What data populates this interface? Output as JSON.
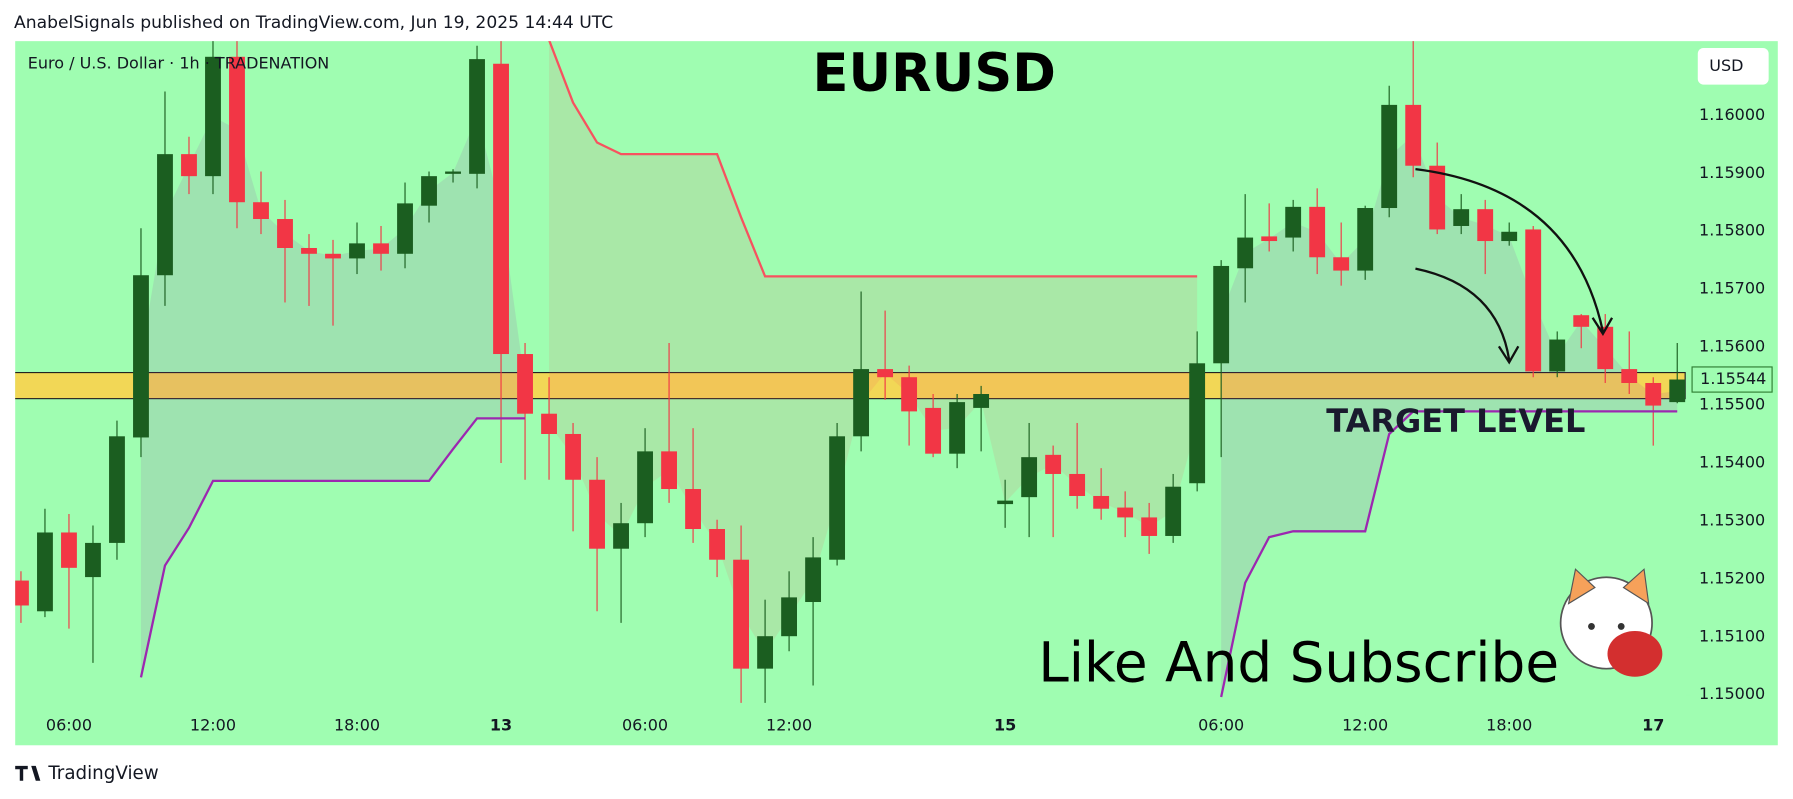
{
  "header": "AnabelSignals published on TradingView.com, Jun 19, 2025 14:44 UTC",
  "footer": "TradingView",
  "chart_data": {
    "type": "candlestick",
    "title": "EURUSD",
    "symbol": "Euro / U.S. Dollar · 1h · TRADENATION",
    "currency": "USD",
    "annotations": [
      "TARGET LEVEL",
      "Like And Subscribe"
    ],
    "up_color": "#1b5e20",
    "down_color": "#f23645",
    "background": "#9ffdb1",
    "x": [
      0,
      1,
      2,
      3,
      4,
      5,
      6,
      7,
      8,
      9,
      10,
      11,
      12,
      13,
      14,
      15,
      16,
      17,
      18,
      19,
      20,
      21,
      22,
      23,
      24,
      25,
      26,
      27,
      28,
      29,
      30,
      31,
      32,
      33,
      34,
      35,
      36,
      37,
      38,
      39,
      40,
      41,
      42,
      43,
      44,
      45,
      46,
      47,
      48,
      49,
      50,
      51,
      52,
      53,
      54,
      55,
      56,
      57,
      58,
      59,
      60,
      61,
      62,
      63,
      64,
      65,
      66,
      67,
      68,
      69
    ],
    "open": [
      1.15197,
      1.15144,
      1.1528,
      1.15203,
      1.15262,
      1.15444,
      1.15724,
      1.15933,
      1.15895,
      1.16101,
      1.1585,
      1.15821,
      1.15771,
      1.15761,
      1.15753,
      1.15779,
      1.15761,
      1.15844,
      1.15899,
      1.15899,
      1.16089,
      1.15588,
      1.15485,
      1.1545,
      1.15371,
      1.15252,
      1.15296,
      1.1542,
      1.15355,
      1.15286,
      1.15233,
      1.15045,
      1.15101,
      1.1516,
      1.15233,
      1.15446,
      1.15562,
      1.15548,
      1.15495,
      1.15416,
      1.15495,
      1.15329,
      1.15341,
      1.15414,
      1.15381,
      1.15343,
      1.15323,
      1.15306,
      1.15274,
      1.15365,
      1.15572,
      1.15736,
      1.15791,
      1.15789,
      1.15842,
      1.15755,
      1.15732,
      1.1584,
      1.16018,
      1.15913,
      1.15809,
      1.15838,
      1.15783,
      1.15803,
      1.15558,
      1.15655,
      1.15635,
      1.15562,
      1.15538,
      1.15505
    ],
    "high": [
      1.15213,
      1.15321,
      1.15312,
      1.15292,
      1.15473,
      1.15805,
      1.16041,
      1.15963,
      1.1613,
      1.1613,
      1.15903,
      1.15854,
      1.15795,
      1.15785,
      1.15815,
      1.15809,
      1.15884,
      1.15903,
      1.15907,
      1.1612,
      1.1613,
      1.15607,
      1.15548,
      1.15469,
      1.1541,
      1.15331,
      1.1546,
      1.15607,
      1.1546,
      1.15302,
      1.15292,
      1.15164,
      1.15213,
      1.15272,
      1.15469,
      1.15696,
      1.15663,
      1.15568,
      1.15519,
      1.15519,
      1.15533,
      1.15371,
      1.15469,
      1.1543,
      1.15469,
      1.15391,
      1.15351,
      1.15331,
      1.15381,
      1.15627,
      1.1575,
      1.15864,
      1.15848,
      1.15854,
      1.15874,
      1.15815,
      1.15844,
      1.16051,
      1.1613,
      1.15953,
      1.15864,
      1.15854,
      1.15815,
      1.15809,
      1.15627,
      1.15657,
      1.15657,
      1.15627,
      1.15548,
      1.15607
    ],
    "low": [
      1.15124,
      1.15134,
      1.15114,
      1.15055,
      1.15233,
      1.1541,
      1.15671,
      1.15864,
      1.15864,
      1.15805,
      1.15795,
      1.15677,
      1.15671,
      1.15637,
      1.15726,
      1.15732,
      1.15736,
      1.15815,
      1.15884,
      1.15874,
      1.154,
      1.15371,
      1.15371,
      1.15282,
      1.15144,
      1.15124,
      1.15272,
      1.15331,
      1.15262,
      1.15203,
      1.14986,
      1.14986,
      1.15075,
      1.15016,
      1.15223,
      1.1542,
      1.15509,
      1.1543,
      1.1541,
      1.15391,
      1.1542,
      1.15288,
      1.15272,
      1.15272,
      1.15321,
      1.15302,
      1.15272,
      1.15243,
      1.15262,
      1.15351,
      1.1541,
      1.15677,
      1.15765,
      1.15765,
      1.15726,
      1.15706,
      1.15716,
      1.15824,
      1.15893,
      1.15795,
      1.15795,
      1.15726,
      1.15775,
      1.15548,
      1.15548,
      1.15598,
      1.15538,
      1.15519,
      1.1543,
      1.15503
    ],
    "close": [
      1.15154,
      1.1528,
      1.15219,
      1.15262,
      1.15446,
      1.15724,
      1.15933,
      1.15895,
      1.16101,
      1.1585,
      1.15821,
      1.15771,
      1.15761,
      1.15753,
      1.15779,
      1.15761,
      1.15848,
      1.15895,
      1.15903,
      1.16097,
      1.15588,
      1.15485,
      1.1545,
      1.15371,
      1.15252,
      1.15296,
      1.1542,
      1.15355,
      1.15286,
      1.15233,
      1.15045,
      1.15101,
      1.15168,
      1.15237,
      1.15446,
      1.15562,
      1.15548,
      1.15489,
      1.15416,
      1.15505,
      1.15519,
      1.15335,
      1.1541,
      1.15381,
      1.15343,
      1.15321,
      1.15306,
      1.15274,
      1.15359,
      1.15572,
      1.1574,
      1.15789,
      1.15783,
      1.15842,
      1.15755,
      1.15732,
      1.1584,
      1.16018,
      1.15913,
      1.15803,
      1.15838,
      1.15783,
      1.15799,
      1.15558,
      1.15613,
      1.15635,
      1.15562,
      1.15538,
      1.15499,
      1.15544
    ],
    "lines": [
      {
        "color": "#f7525f",
        "values": [
          null,
          null,
          null,
          null,
          null,
          null,
          null,
          null,
          null,
          null,
          null,
          null,
          null,
          null,
          null,
          null,
          null,
          null,
          null,
          null,
          null,
          null,
          1.1613,
          1.16022,
          1.15953,
          1.15933,
          1.15933,
          1.15933,
          1.15933,
          1.15933,
          1.15824,
          1.15722,
          1.15722,
          1.15722,
          1.15722,
          1.15722,
          1.15722,
          1.15722,
          1.15722,
          1.15722,
          1.15722,
          1.15722,
          1.15722,
          1.15722,
          1.15722,
          1.15722,
          1.15722,
          1.15722,
          1.15722,
          1.15722,
          null,
          null,
          null,
          null,
          null,
          null,
          null,
          null,
          null,
          null,
          null,
          null,
          null,
          null,
          null,
          null,
          null,
          null,
          null,
          null
        ]
      },
      {
        "color": "#9c27b0",
        "values": [
          null,
          null,
          null,
          null,
          null,
          1.1503,
          1.15223,
          1.15288,
          1.15369,
          1.15369,
          1.15369,
          1.15369,
          1.15369,
          1.15369,
          1.15369,
          1.15369,
          1.15369,
          1.15369,
          1.15424,
          1.15477,
          1.15477,
          1.15477,
          null,
          null,
          null,
          null,
          null,
          null,
          null,
          null,
          null,
          null,
          null,
          null,
          null,
          null,
          null,
          null,
          null,
          null,
          null,
          null,
          null,
          null,
          null,
          null,
          null,
          null,
          null,
          null,
          1.14996,
          1.15193,
          1.15272,
          1.15282,
          1.15282,
          1.15282,
          1.15282,
          1.1545,
          1.15489,
          1.15489,
          1.15489,
          1.15489,
          1.15489,
          1.15489,
          1.15489,
          1.15489,
          1.15489,
          1.15489,
          1.15489,
          1.15489
        ]
      }
    ],
    "zone": [
      1.15511,
      1.15556
    ],
    "zone_color": "#fbd34d",
    "last_price": 1.15544,
    "xlim": [
      -0.24,
      69.38
    ],
    "ylim": [
      1.14966,
      1.16128
    ],
    "yticks": [
      {
        "value": 1.15,
        "label": "1.15000"
      },
      {
        "value": 1.151,
        "label": "1.15100"
      },
      {
        "value": 1.152,
        "label": "1.15200"
      },
      {
        "value": 1.153,
        "label": "1.15300"
      },
      {
        "value": 1.154,
        "label": "1.15400"
      },
      {
        "value": 1.155,
        "label": "1.15500"
      },
      {
        "value": 1.156,
        "label": "1.15600"
      },
      {
        "value": 1.157,
        "label": "1.15700"
      },
      {
        "value": 1.158,
        "label": "1.15800"
      },
      {
        "value": 1.159,
        "label": "1.15900"
      },
      {
        "value": 1.16,
        "label": "1.16000"
      }
    ],
    "xticks": [
      {
        "value": 2,
        "label": "06:00"
      },
      {
        "value": 8,
        "label": "12:00"
      },
      {
        "value": 14,
        "label": "18:00"
      },
      {
        "value": 20,
        "label": "13"
      },
      {
        "value": 26,
        "label": "06:00"
      },
      {
        "value": 32,
        "label": "12:00"
      },
      {
        "value": 41,
        "label": "15"
      },
      {
        "value": 50,
        "label": "06:00"
      },
      {
        "value": 56,
        "label": "12:00"
      },
      {
        "value": 62,
        "label": "18:00"
      },
      {
        "value": 68,
        "label": "17"
      }
    ],
    "grid": false
  }
}
